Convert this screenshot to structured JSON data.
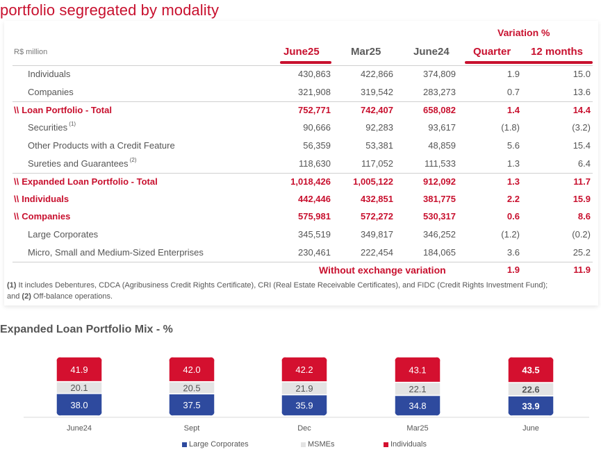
{
  "page_title": "portfolio segregated by modality",
  "table": {
    "unit": "R$ million",
    "variation_title": "Variation %",
    "columns": [
      "June25",
      "Mar25",
      "June24",
      "Quarter",
      "12 months"
    ],
    "total_marker": "\\\\",
    "rows": [
      {
        "label": "Individuals",
        "sup": "",
        "values": [
          "430,863",
          "422,866",
          "374,809",
          "1.9",
          "15.0"
        ],
        "total": false
      },
      {
        "label": "Companies",
        "sup": "",
        "values": [
          "321,908",
          "319,542",
          "283,273",
          "0.7",
          "13.6"
        ],
        "total": false
      },
      {
        "label": "Loan Portfolio - Total",
        "sup": "",
        "values": [
          "752,771",
          "742,407",
          "658,082",
          "1.4",
          "14.4"
        ],
        "total": true
      },
      {
        "label": "Securities",
        "sup": "(1)",
        "values": [
          "90,666",
          "92,283",
          "93,617",
          "(1.8)",
          "(3.2)"
        ],
        "total": false
      },
      {
        "label": "Other Products with a Credit Feature",
        "sup": "",
        "values": [
          "56,359",
          "53,381",
          "48,859",
          "5.6",
          "15.4"
        ],
        "total": false
      },
      {
        "label": "Sureties and Guarantees",
        "sup": "(2)",
        "values": [
          "118,630",
          "117,052",
          "111,533",
          "1.3",
          "6.4"
        ],
        "total": false
      },
      {
        "label": "Expanded Loan Portfolio - Total",
        "sup": "",
        "values": [
          "1,018,426",
          "1,005,122",
          "912,092",
          "1.3",
          "11.7"
        ],
        "total": true
      },
      {
        "label": "Individuals",
        "sup": "",
        "values": [
          "442,446",
          "432,851",
          "381,775",
          "2.2",
          "15.9"
        ],
        "total": true
      },
      {
        "label": "Companies",
        "sup": "",
        "values": [
          "575,981",
          "572,272",
          "530,317",
          "0.6",
          "8.6"
        ],
        "total": true
      },
      {
        "label": "Large Corporates",
        "sup": "",
        "values": [
          "345,519",
          "349,817",
          "346,252",
          "(1.2)",
          "(0.2)"
        ],
        "total": false
      },
      {
        "label": "Micro, Small and Medium-Sized Enterprises",
        "sup": "",
        "values": [
          "230,461",
          "222,454",
          "184,065",
          "3.6",
          "25.2"
        ],
        "total": false
      }
    ],
    "without_exchange": {
      "label": "Without exchange variation",
      "quarter": "1.9",
      "twelve_months": "11.9"
    },
    "footnote": {
      "n1": "(1)",
      "t1": " It includes Debentures, CDCA (Agribusiness Credit Rights Certificate), CRI (Real Estate Receivable Certificates), and FIDC (Credit Rights Investment Fund);",
      "and": "and ",
      "n2": "(2)",
      "t2": " Off-balance operations."
    }
  },
  "colors": {
    "accent": "#c8102e",
    "large_corporates": "#2e4a9e",
    "msmes": "#e3e3e3",
    "individuals": "#d4102f"
  },
  "chart_data": {
    "type": "bar",
    "stacked": true,
    "title": "Expanded Loan Portfolio Mix - %",
    "categories": [
      "June24",
      "Sept",
      "Dec",
      "Mar25",
      "June"
    ],
    "series": [
      {
        "name": "Large Corporates",
        "values": [
          38.0,
          37.5,
          35.9,
          34.8,
          33.9
        ]
      },
      {
        "name": "MSMEs",
        "values": [
          20.1,
          20.5,
          21.9,
          22.1,
          22.6
        ]
      },
      {
        "name": "Individuals",
        "values": [
          41.9,
          42.0,
          42.2,
          43.1,
          43.5
        ]
      }
    ],
    "labels": [
      [
        "38.0",
        "37.5",
        "35.9",
        "34.8",
        "33.9"
      ],
      [
        "20.1",
        "20.5",
        "21.9",
        "22.1",
        "22.6"
      ],
      [
        "41.9",
        "42.0",
        "42.2",
        "43.1",
        "43.5"
      ]
    ],
    "highlight_last": true,
    "legend_position": "bottom"
  }
}
